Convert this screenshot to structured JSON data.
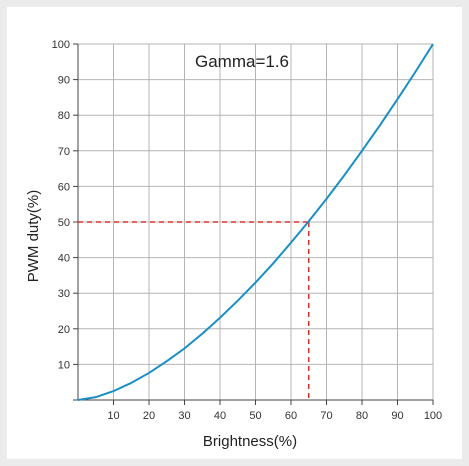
{
  "chart_data": {
    "type": "line",
    "title": "",
    "annotation": "Gamma=1.6",
    "xlabel": "Brightness(%)",
    "ylabel": "PWM duty(%)",
    "xlim": [
      0,
      100
    ],
    "ylim": [
      0,
      100
    ],
    "xticks": [
      10,
      20,
      30,
      40,
      50,
      60,
      70,
      80,
      90,
      100
    ],
    "yticks": [
      10,
      20,
      30,
      40,
      50,
      60,
      70,
      80,
      90,
      100
    ],
    "grid": true,
    "gamma": 1.6,
    "series": [
      {
        "x": [
          0,
          5,
          10,
          15,
          20,
          25,
          30,
          35,
          40,
          45,
          50,
          55,
          60,
          65,
          70,
          75,
          80,
          85,
          90,
          95,
          100
        ],
        "y": [
          0,
          0.8,
          2.5,
          4.8,
          7.6,
          10.9,
          14.5,
          18.6,
          23.1,
          27.9,
          33.0,
          38.4,
          44.2,
          50.2,
          56.5,
          63.1,
          70.0,
          77.1,
          84.5,
          92.1,
          100
        ],
        "color": "#1a8fc4"
      }
    ],
    "reference_point": {
      "x": 65,
      "y": 50,
      "color": "#d9342b"
    }
  }
}
